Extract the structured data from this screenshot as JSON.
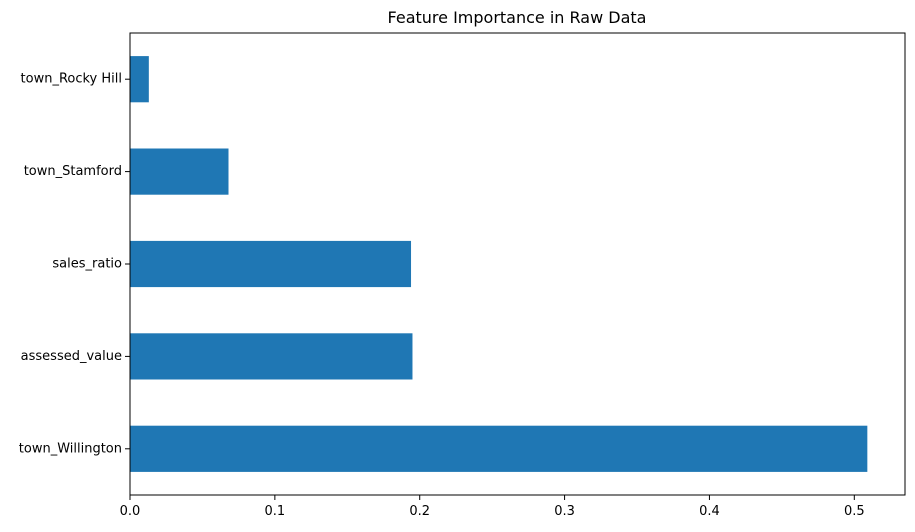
{
  "chart_data": {
    "type": "bar",
    "orientation": "horizontal",
    "title": "Feature Importance in Raw Data",
    "xlabel": "",
    "ylabel": "",
    "categories": [
      "town_Willington",
      "assessed_value",
      "sales_ratio",
      "town_Stamford",
      "town_Rocky Hill"
    ],
    "values": [
      0.509,
      0.195,
      0.194,
      0.068,
      0.013
    ],
    "xlim": [
      0,
      0.535
    ],
    "xticks": [
      0.0,
      0.1,
      0.2,
      0.3,
      0.4,
      0.5
    ],
    "xtick_labels": [
      "0.0",
      "0.1",
      "0.2",
      "0.3",
      "0.4",
      "0.5"
    ],
    "grid": false,
    "bar_color": "#1f77b4"
  }
}
